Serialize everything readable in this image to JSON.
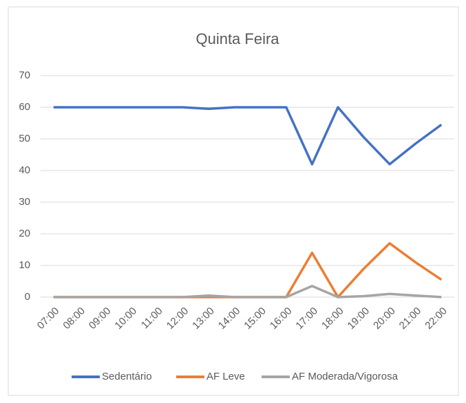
{
  "chart_data": {
    "type": "line",
    "title": "Quinta Feira",
    "categories": [
      "07:00",
      "08:00",
      "09:00",
      "10:00",
      "11:00",
      "12:00",
      "13:00",
      "14:00",
      "15:00",
      "16:00",
      "17:00",
      "18:00",
      "19:00",
      "20:00",
      "21:00",
      "22:00"
    ],
    "series": [
      {
        "name": "Sedentário",
        "color": "#4472c4",
        "values": [
          60,
          60,
          60,
          60,
          60,
          60,
          59.5,
          60,
          60,
          60,
          42,
          60,
          50.5,
          42,
          48.5,
          54.5
        ]
      },
      {
        "name": "AF Leve",
        "color": "#ed7d31",
        "values": [
          0,
          0,
          0,
          0,
          0,
          0,
          0,
          0,
          0,
          0,
          14,
          0,
          9,
          17,
          11,
          5.5
        ]
      },
      {
        "name": "AF Moderada/Vigorosa",
        "color": "#a5a5a5",
        "values": [
          0,
          0,
          0,
          0,
          0,
          0,
          0.5,
          0,
          0,
          0,
          3.5,
          0,
          0.3,
          1,
          0.5,
          0
        ]
      }
    ],
    "ylim": [
      0,
      70
    ],
    "yticks": [
      0,
      10,
      20,
      30,
      40,
      50,
      60,
      70
    ],
    "grid": true,
    "legend": "bottom"
  }
}
